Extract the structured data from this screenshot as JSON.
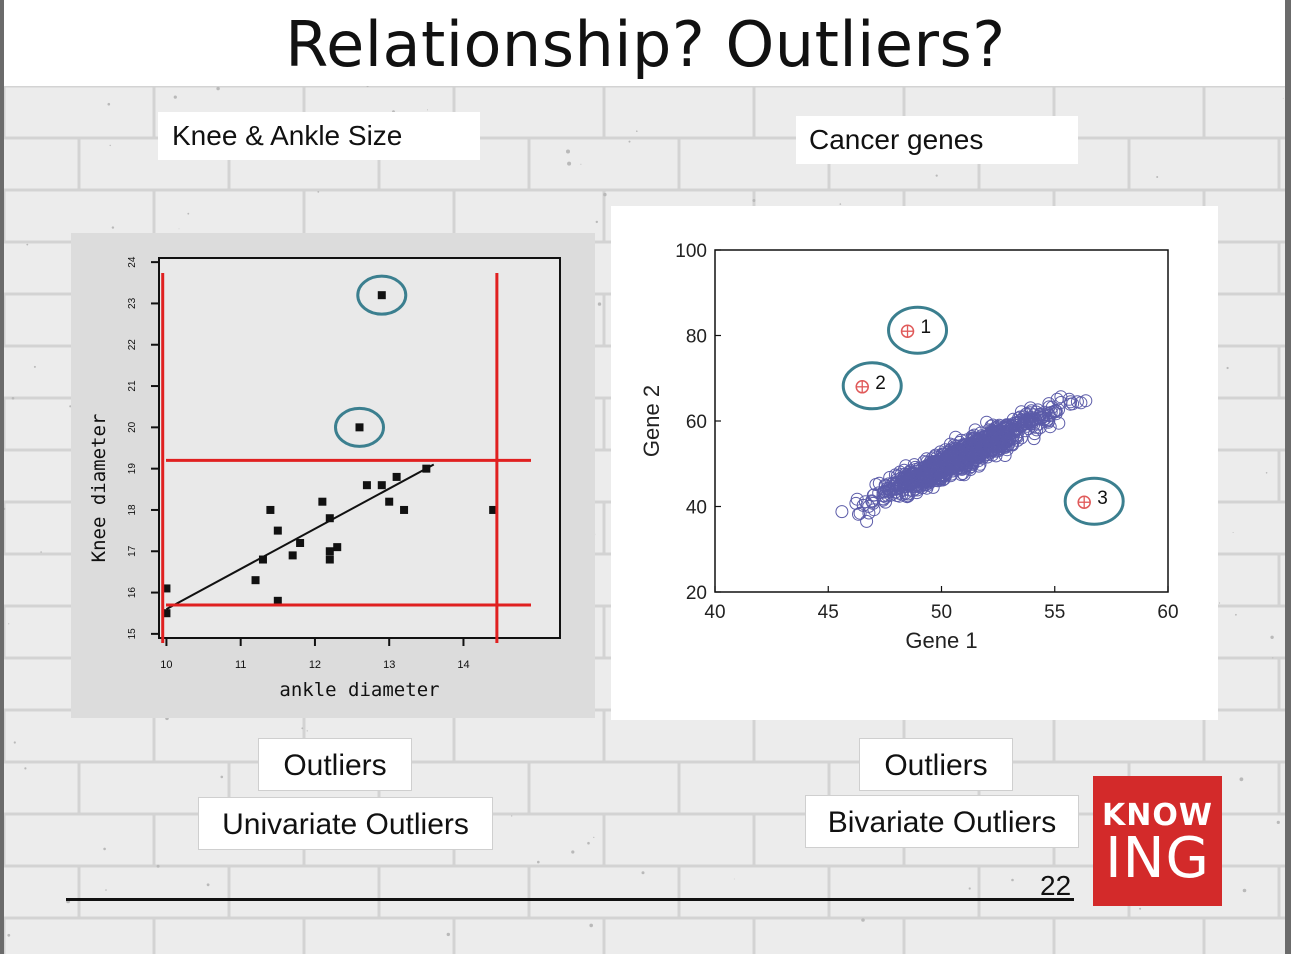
{
  "slide": {
    "title": "Relationship?   Outliers?",
    "page_number": "22"
  },
  "labels": {
    "left_caption": "Knee & Ankle Size",
    "right_caption": "Cancer genes",
    "left_outliers": "Outliers",
    "left_type": "Univariate Outliers",
    "right_outliers": "Outliers",
    "right_type": "Bivariate Outliers"
  },
  "logo": {
    "line1": "KNOW",
    "line2": "ING",
    "color": "#d32a2a"
  },
  "chart_data": [
    {
      "type": "scatter",
      "title": "",
      "xlabel": "ankle diameter",
      "ylabel": "Knee diameter",
      "xlim": [
        9.9,
        15.3
      ],
      "ylim": [
        14.9,
        24.1
      ],
      "x_ticks": [
        10,
        11,
        12,
        13,
        14
      ],
      "y_ticks": [
        15,
        16,
        17,
        18,
        19,
        20,
        21,
        22,
        23,
        24
      ],
      "grid": false,
      "points": [
        [
          12.9,
          23.2
        ],
        [
          12.6,
          20.0
        ],
        [
          10.0,
          16.1
        ],
        [
          10.0,
          15.5
        ],
        [
          11.2,
          16.3
        ],
        [
          11.3,
          16.8
        ],
        [
          11.4,
          18.0
        ],
        [
          11.5,
          17.5
        ],
        [
          11.5,
          15.8
        ],
        [
          11.7,
          16.9
        ],
        [
          11.8,
          17.2
        ],
        [
          12.1,
          18.2
        ],
        [
          12.2,
          17.8
        ],
        [
          12.2,
          17.0
        ],
        [
          12.2,
          16.8
        ],
        [
          12.3,
          17.1
        ],
        [
          12.7,
          18.6
        ],
        [
          12.9,
          18.6
        ],
        [
          13.0,
          18.2
        ],
        [
          13.1,
          18.8
        ],
        [
          13.2,
          18.0
        ],
        [
          13.5,
          19.0
        ],
        [
          14.4,
          18.0
        ]
      ],
      "circled_points": [
        [
          12.9,
          23.2
        ],
        [
          12.6,
          20.0
        ]
      ],
      "regression_line": [
        [
          10.0,
          15.6
        ],
        [
          13.6,
          19.1
        ]
      ],
      "reference_lines": {
        "x": [
          9.95,
          14.45
        ],
        "y": [
          19.2,
          15.7
        ],
        "color": "#e02020"
      }
    },
    {
      "type": "scatter",
      "title": "",
      "xlabel": "Gene 1",
      "ylabel": "Gene 2",
      "xlim": [
        40,
        60
      ],
      "ylim": [
        20,
        100
      ],
      "x_ticks": [
        40,
        45,
        50,
        55,
        60
      ],
      "y_ticks": [
        20,
        40,
        60,
        80,
        100
      ],
      "grid": false,
      "cluster": {
        "center": [
          51,
          52
        ],
        "slope": 2.6,
        "x_range": [
          41,
          58
        ],
        "count": 900
      },
      "point_color": "#3f3f9a",
      "outliers": [
        {
          "label": "1",
          "x": 48.5,
          "y": 81
        },
        {
          "label": "2",
          "x": 46.5,
          "y": 68
        },
        {
          "label": "3",
          "x": 56.3,
          "y": 41
        }
      ],
      "outlier_color": "#e05a5a",
      "circle_color": "#3b7f8f"
    }
  ]
}
